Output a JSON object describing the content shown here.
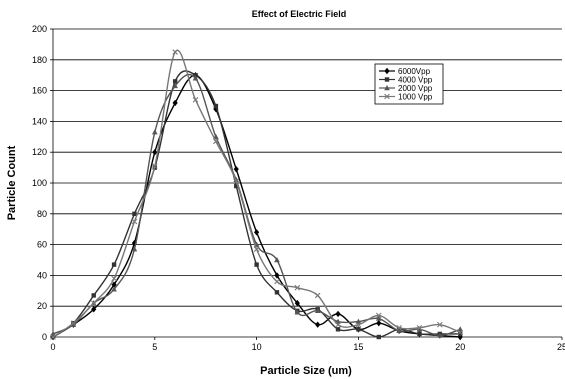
{
  "chart_data": {
    "type": "line",
    "title": "Effect of Electric Field",
    "xlabel": "Particle Size (um)",
    "ylabel": "Particle Count",
    "xlim": [
      0,
      25
    ],
    "ylim": [
      0,
      200
    ],
    "xticks": [
      0,
      5,
      10,
      15,
      20,
      25
    ],
    "yticks": [
      0,
      20,
      40,
      60,
      80,
      100,
      120,
      140,
      160,
      180,
      200
    ],
    "grid": "horizontal",
    "legend_position": "top-right",
    "x": [
      0,
      1,
      2,
      3,
      4,
      5,
      6,
      7,
      8,
      9,
      10,
      11,
      12,
      13,
      14,
      15,
      16,
      17,
      18,
      19,
      20
    ],
    "series": [
      {
        "name": "6000Vpp",
        "marker": "diamond",
        "color": "#000000",
        "values": [
          0,
          8,
          18,
          34,
          61,
          120,
          152,
          170,
          148,
          109,
          68,
          40,
          22,
          8,
          15,
          5,
          9,
          4,
          2,
          1,
          0
        ]
      },
      {
        "name": "4000 Vpp",
        "marker": "square",
        "color": "#333333",
        "values": [
          0,
          9,
          27,
          47,
          80,
          110,
          166,
          170,
          150,
          98,
          47,
          29,
          17,
          18,
          5,
          5,
          0,
          5,
          2,
          2,
          2
        ]
      },
      {
        "name": "2000 Vpp",
        "marker": "triangle",
        "color": "#555555",
        "values": [
          2,
          8,
          22,
          31,
          57,
          133,
          163,
          168,
          130,
          102,
          60,
          50,
          16,
          17,
          10,
          10,
          12,
          4,
          5,
          1,
          5
        ]
      },
      {
        "name": "1000 Vpp",
        "marker": "x",
        "color": "#777777",
        "values": [
          0,
          9,
          22,
          38,
          75,
          111,
          185,
          154,
          127,
          101,
          57,
          36,
          32,
          27,
          8,
          8,
          14,
          6,
          6,
          8,
          3
        ]
      }
    ]
  }
}
